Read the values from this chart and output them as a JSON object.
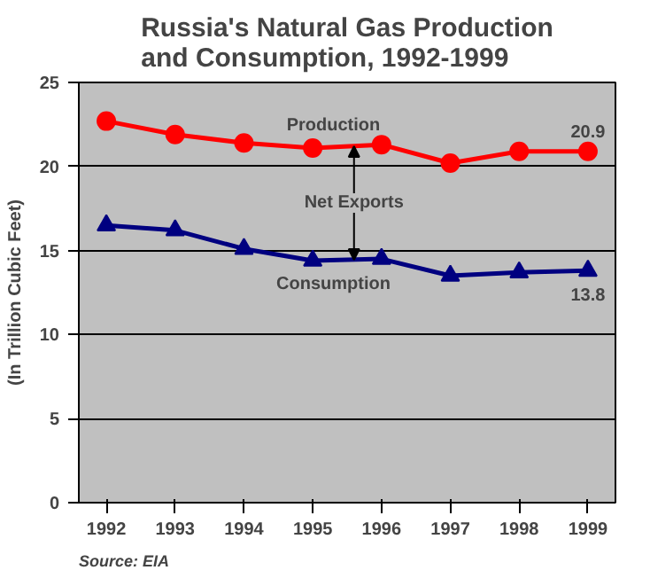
{
  "chart_data": {
    "type": "line",
    "title": "Russia's Natural Gas Production\nand Consumption, 1992-1999",
    "ylabel": "(In Trillion Cubic Feet)",
    "categories": [
      "1992",
      "1993",
      "1994",
      "1995",
      "1996",
      "1997",
      "1998",
      "1999"
    ],
    "series": [
      {
        "name": "Production",
        "color": "#ff0000",
        "marker": "circle",
        "values": [
          22.7,
          21.9,
          21.4,
          21.1,
          21.3,
          20.2,
          20.9,
          20.9
        ],
        "value_labels": [
          null,
          null,
          null,
          null,
          null,
          null,
          null,
          "20.9"
        ]
      },
      {
        "name": "Consumption",
        "color": "#000080",
        "marker": "triangle",
        "values": [
          16.5,
          16.2,
          15.1,
          14.4,
          14.5,
          13.5,
          13.7,
          13.8
        ],
        "value_labels": [
          null,
          null,
          null,
          null,
          null,
          null,
          null,
          "13.8"
        ]
      }
    ],
    "ylim": [
      0,
      25
    ],
    "yticks": [
      0,
      5,
      10,
      15,
      20,
      25
    ],
    "grid": "y",
    "line_style": "solid",
    "annotations": [
      "Net Exports",
      "Source: EIA"
    ]
  }
}
